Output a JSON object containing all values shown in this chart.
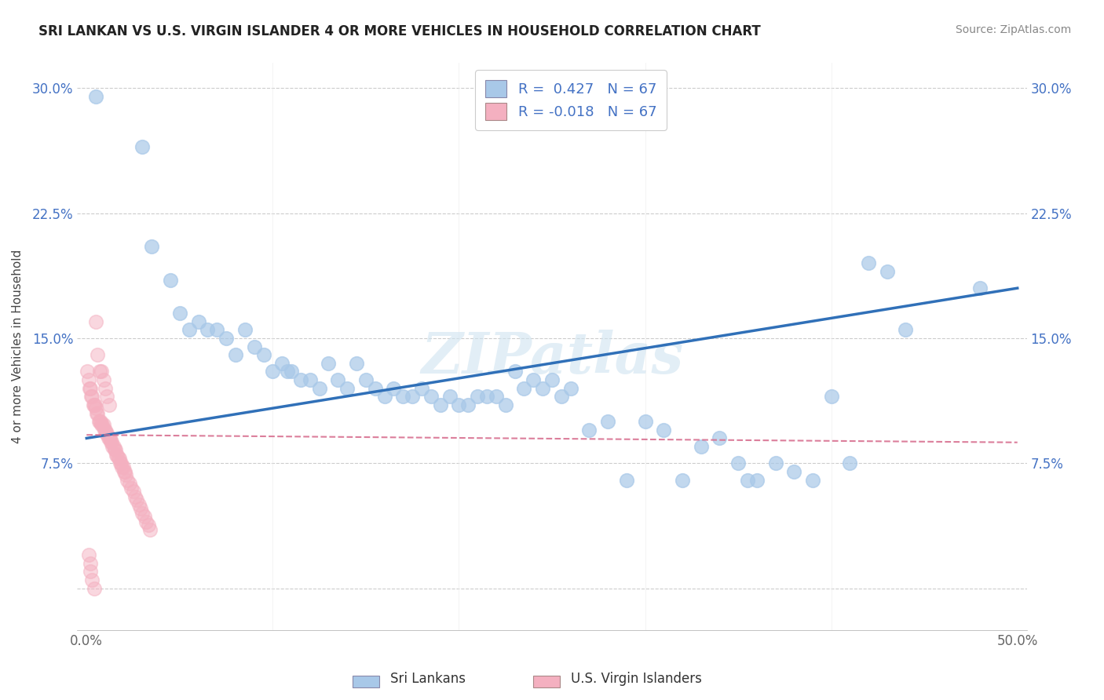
{
  "title": "SRI LANKAN VS U.S. VIRGIN ISLANDER 4 OR MORE VEHICLES IN HOUSEHOLD CORRELATION CHART",
  "source": "Source: ZipAtlas.com",
  "ylabel": "4 or more Vehicles in Household",
  "xlabel_blue": "Sri Lankans",
  "xlabel_pink": "U.S. Virgin Islanders",
  "xlim": [
    0.0,
    0.5
  ],
  "ylim": [
    -0.01,
    0.31
  ],
  "plot_ylim": [
    -0.005,
    0.305
  ],
  "xticks": [
    0.0,
    0.1,
    0.2,
    0.3,
    0.4,
    0.5
  ],
  "xticklabels": [
    "0.0%",
    "",
    "",
    "",
    "",
    "50.0%"
  ],
  "yticks": [
    0.0,
    0.075,
    0.15,
    0.225,
    0.3
  ],
  "yticklabels_left": [
    "",
    "7.5%",
    "15.0%",
    "22.5%",
    "30.0%"
  ],
  "yticklabels_right": [
    "",
    "7.5%",
    "15.0%",
    "22.5%",
    "30.0%"
  ],
  "legend_blue_r": "0.427",
  "legend_pink_r": "-0.018",
  "legend_n": "67",
  "blue_color": "#a8c8e8",
  "pink_color": "#f4b0c0",
  "blue_line_color": "#3070b8",
  "pink_line_color": "#d87090",
  "watermark": "ZIPatlas",
  "blue_scatter": [
    [
      0.005,
      0.295
    ],
    [
      0.03,
      0.265
    ],
    [
      0.035,
      0.205
    ],
    [
      0.045,
      0.185
    ],
    [
      0.05,
      0.165
    ],
    [
      0.055,
      0.155
    ],
    [
      0.06,
      0.16
    ],
    [
      0.065,
      0.155
    ],
    [
      0.07,
      0.155
    ],
    [
      0.075,
      0.15
    ],
    [
      0.08,
      0.14
    ],
    [
      0.085,
      0.155
    ],
    [
      0.09,
      0.145
    ],
    [
      0.095,
      0.14
    ],
    [
      0.1,
      0.13
    ],
    [
      0.105,
      0.135
    ],
    [
      0.108,
      0.13
    ],
    [
      0.11,
      0.13
    ],
    [
      0.115,
      0.125
    ],
    [
      0.12,
      0.125
    ],
    [
      0.125,
      0.12
    ],
    [
      0.13,
      0.135
    ],
    [
      0.135,
      0.125
    ],
    [
      0.14,
      0.12
    ],
    [
      0.145,
      0.135
    ],
    [
      0.15,
      0.125
    ],
    [
      0.155,
      0.12
    ],
    [
      0.16,
      0.115
    ],
    [
      0.165,
      0.12
    ],
    [
      0.17,
      0.115
    ],
    [
      0.175,
      0.115
    ],
    [
      0.18,
      0.12
    ],
    [
      0.185,
      0.115
    ],
    [
      0.19,
      0.11
    ],
    [
      0.195,
      0.115
    ],
    [
      0.2,
      0.11
    ],
    [
      0.205,
      0.11
    ],
    [
      0.21,
      0.115
    ],
    [
      0.215,
      0.115
    ],
    [
      0.22,
      0.115
    ],
    [
      0.225,
      0.11
    ],
    [
      0.23,
      0.13
    ],
    [
      0.235,
      0.12
    ],
    [
      0.24,
      0.125
    ],
    [
      0.245,
      0.12
    ],
    [
      0.25,
      0.125
    ],
    [
      0.255,
      0.115
    ],
    [
      0.26,
      0.12
    ],
    [
      0.27,
      0.095
    ],
    [
      0.28,
      0.1
    ],
    [
      0.29,
      0.065
    ],
    [
      0.3,
      0.1
    ],
    [
      0.31,
      0.095
    ],
    [
      0.32,
      0.065
    ],
    [
      0.33,
      0.085
    ],
    [
      0.34,
      0.09
    ],
    [
      0.35,
      0.075
    ],
    [
      0.355,
      0.065
    ],
    [
      0.36,
      0.065
    ],
    [
      0.37,
      0.075
    ],
    [
      0.38,
      0.07
    ],
    [
      0.39,
      0.065
    ],
    [
      0.4,
      0.115
    ],
    [
      0.41,
      0.075
    ],
    [
      0.42,
      0.195
    ],
    [
      0.43,
      0.19
    ],
    [
      0.44,
      0.155
    ],
    [
      0.48,
      0.18
    ]
  ],
  "pink_scatter": [
    [
      0.0005,
      0.13
    ],
    [
      0.001,
      0.125
    ],
    [
      0.0015,
      0.12
    ],
    [
      0.002,
      0.12
    ],
    [
      0.0025,
      0.115
    ],
    [
      0.003,
      0.115
    ],
    [
      0.0035,
      0.11
    ],
    [
      0.004,
      0.11
    ],
    [
      0.0045,
      0.11
    ],
    [
      0.005,
      0.108
    ],
    [
      0.0055,
      0.105
    ],
    [
      0.006,
      0.105
    ],
    [
      0.0065,
      0.1
    ],
    [
      0.007,
      0.1
    ],
    [
      0.0075,
      0.1
    ],
    [
      0.008,
      0.098
    ],
    [
      0.0085,
      0.098
    ],
    [
      0.009,
      0.098
    ],
    [
      0.0095,
      0.095
    ],
    [
      0.01,
      0.095
    ],
    [
      0.0105,
      0.093
    ],
    [
      0.011,
      0.093
    ],
    [
      0.0115,
      0.09
    ],
    [
      0.012,
      0.09
    ],
    [
      0.0125,
      0.09
    ],
    [
      0.013,
      0.088
    ],
    [
      0.0135,
      0.088
    ],
    [
      0.014,
      0.085
    ],
    [
      0.0145,
      0.085
    ],
    [
      0.015,
      0.083
    ],
    [
      0.0155,
      0.083
    ],
    [
      0.016,
      0.08
    ],
    [
      0.0165,
      0.08
    ],
    [
      0.017,
      0.078
    ],
    [
      0.0175,
      0.078
    ],
    [
      0.018,
      0.075
    ],
    [
      0.0185,
      0.075
    ],
    [
      0.019,
      0.073
    ],
    [
      0.0195,
      0.073
    ],
    [
      0.02,
      0.07
    ],
    [
      0.0205,
      0.07
    ],
    [
      0.021,
      0.068
    ],
    [
      0.022,
      0.065
    ],
    [
      0.023,
      0.063
    ],
    [
      0.024,
      0.06
    ],
    [
      0.025,
      0.058
    ],
    [
      0.026,
      0.055
    ],
    [
      0.027,
      0.053
    ],
    [
      0.028,
      0.05
    ],
    [
      0.029,
      0.048
    ],
    [
      0.03,
      0.045
    ],
    [
      0.031,
      0.043
    ],
    [
      0.032,
      0.04
    ],
    [
      0.033,
      0.038
    ],
    [
      0.034,
      0.035
    ],
    [
      0.005,
      0.16
    ],
    [
      0.006,
      0.14
    ],
    [
      0.007,
      0.13
    ],
    [
      0.008,
      0.13
    ],
    [
      0.009,
      0.125
    ],
    [
      0.01,
      0.12
    ],
    [
      0.011,
      0.115
    ],
    [
      0.012,
      0.11
    ],
    [
      0.001,
      0.02
    ],
    [
      0.002,
      0.015
    ],
    [
      0.002,
      0.01
    ],
    [
      0.003,
      0.005
    ],
    [
      0.004,
      0.0
    ]
  ]
}
